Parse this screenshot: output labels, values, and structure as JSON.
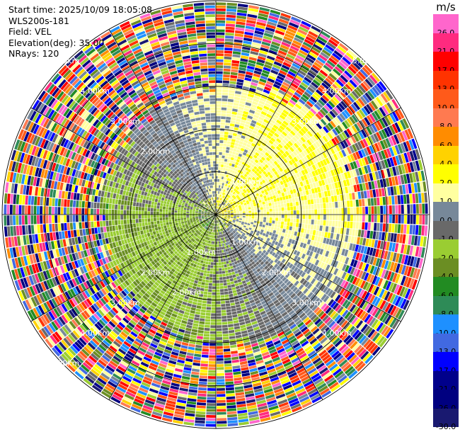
{
  "header": {
    "start_time": "Start time: 2025/10/09 18:05:08",
    "instrument": "WLS200s-181",
    "field": "Field: VEL",
    "elevation": "Elevation(deg): 35.00",
    "nrays": "NRays: 120"
  },
  "colorbar": {
    "unit": "m/s",
    "levels": [
      {
        "label": "26.0",
        "color": "#ff66cc"
      },
      {
        "label": "21.0",
        "color": "#ff2a7f"
      },
      {
        "label": "17.0",
        "color": "#ff0000"
      },
      {
        "label": "13.0",
        "color": "#ff3300"
      },
      {
        "label": "10.0",
        "color": "#ff5a1a"
      },
      {
        "label": "8.0",
        "color": "#ff7a50"
      },
      {
        "label": "6.0",
        "color": "#ff8c00"
      },
      {
        "label": "4.0",
        "color": "#ffd200"
      },
      {
        "label": "2.0",
        "color": "#ffff00"
      },
      {
        "label": "1.0",
        "color": "#ffffa0"
      },
      {
        "label": "0.0",
        "color": "#778899"
      },
      {
        "label": "-1.0",
        "color": "#696969"
      },
      {
        "label": "-2.0",
        "color": "#9acd32"
      },
      {
        "label": "-4.0",
        "color": "#6b8e23"
      },
      {
        "label": "-6.0",
        "color": "#228b22"
      },
      {
        "label": "-8.0",
        "color": "#2e8b57"
      },
      {
        "label": "-10.0",
        "color": "#1e90ff"
      },
      {
        "label": "-13.0",
        "color": "#4169e1"
      },
      {
        "label": "-17.0",
        "color": "#0000ff"
      },
      {
        "label": "-21.0",
        "color": "#00008b"
      },
      {
        "label": "-26.0",
        "color": "#000080"
      },
      {
        "label": "-30.0",
        "color": "#191970"
      }
    ]
  },
  "chart_data": {
    "type": "heatmap",
    "projection": "polar PPI",
    "nrays": 120,
    "elevation_deg": 35.0,
    "field": "VEL",
    "unit": "m/s",
    "range_rings_km": [
      1.0,
      2.0,
      3.0,
      4.0,
      5.0
    ],
    "ring_labels": {
      "upper_left": [
        "2.00km",
        "3.00km",
        "4.00km",
        "5.00km"
      ],
      "upper_right": [
        "1.00km",
        "3.00km",
        "4.00km",
        "5.00km"
      ],
      "lower_left": [
        "2.00km",
        "3.00km",
        "4.00km",
        "5.00km"
      ],
      "lower_right": [
        "1.00km",
        "2.00km",
        "3.00km",
        "4.00km"
      ],
      "center": [
        "1.00km",
        "2.00km"
      ]
    },
    "max_range_km": 5.0,
    "pattern": [
      {
        "region": "east_inner",
        "value": 3.0
      },
      {
        "region": "north_inner",
        "value": 2.0
      },
      {
        "region": "west_inner",
        "value": -0.5
      },
      {
        "region": "south_inner",
        "value": -1.5
      },
      {
        "region": "outer_ring",
        "value": "noisy"
      }
    ]
  }
}
